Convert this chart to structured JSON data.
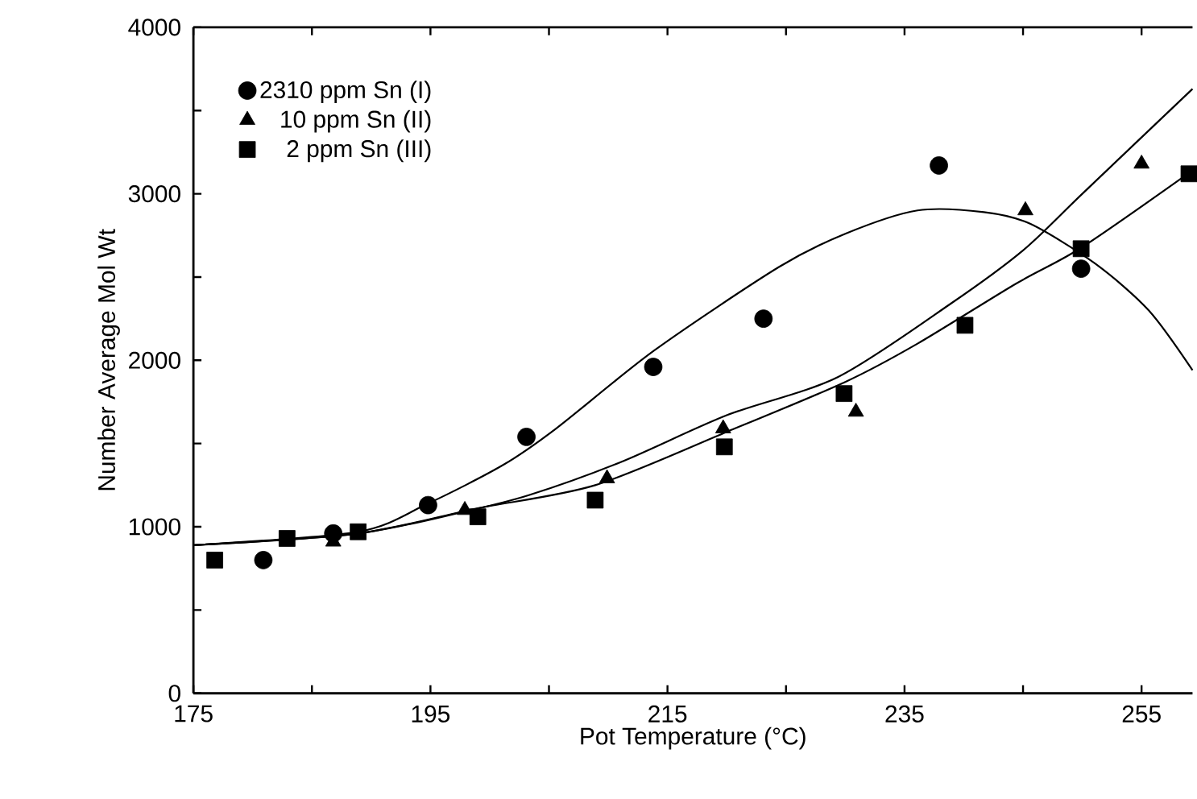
{
  "chart_data": {
    "type": "scatter",
    "xlabel": "Pot Temperature (°C)",
    "ylabel": "Number Average Mol Wt",
    "xlim": [
      175,
      259.3
    ],
    "ylim": [
      0,
      4000
    ],
    "xticks": [
      175,
      {
        "value": 185,
        "label": null
      },
      195,
      {
        "value": 205,
        "label": null
      },
      215,
      {
        "value": 225,
        "label": null
      },
      235,
      {
        "value": 245,
        "label": null
      },
      255
    ],
    "yticks": [
      0,
      {
        "value": 500,
        "label": null
      },
      1000,
      {
        "value": 1500,
        "label": null
      },
      2000,
      {
        "value": 2500,
        "label": null
      },
      3000,
      {
        "value": 3500,
        "label": null
      },
      4000
    ],
    "grid": false,
    "legend": "top left",
    "series": [
      {
        "name": "2310 ppm Sn (I)",
        "marker": "circle",
        "color": "#000000",
        "x": [
          180.9,
          186.8,
          194.8,
          203.1,
          213.8,
          223.1,
          237.9,
          249.9
        ],
        "values": [
          800,
          960,
          1130,
          1540,
          1960,
          2250,
          3170,
          2550
        ]
      },
      {
        "name": "10 ppm Sn (II)",
        "marker": "triangle",
        "color": "#000000",
        "x": [
          186.8,
          197.9,
          209.9,
          219.7,
          230.9,
          245.2,
          255
        ],
        "values": [
          910,
          1100,
          1290,
          1590,
          1690,
          2900,
          3180
        ]
      },
      {
        "name": "2 ppm Sn (III)",
        "marker": "square",
        "color": "#000000",
        "x": [
          176.8,
          182.9,
          188.9,
          199,
          208.9,
          219.8,
          229.9,
          240.1,
          249.9,
          259
        ],
        "values": [
          800,
          930,
          970,
          1060,
          1160,
          1480,
          1800,
          2210,
          2670,
          3120
        ]
      },
      {
        "type": "line",
        "marker": "none",
        "color": "#000000",
        "x": [
          175,
          188.9,
          194.8,
          201.1,
          205.6,
          213.9,
          224.4,
          230,
          236.1,
          241.7,
          245.6,
          251.1,
          255.6,
          259.3
        ],
        "values": [
          890,
          970,
          1140,
          1370,
          1590,
          2060,
          2560,
          2760,
          2900,
          2890,
          2820,
          2580,
          2300,
          1940
        ]
      },
      {
        "type": "line",
        "marker": "none",
        "color": "#000000",
        "x": [
          175,
          188.9,
          197.8,
          203.3,
          211.1,
          220,
          229.4,
          238.9,
          245,
          250,
          259.3
        ],
        "values": [
          890,
          960,
          1090,
          1190,
          1390,
          1670,
          1900,
          2340,
          2660,
          3000,
          3630
        ]
      },
      {
        "type": "line",
        "marker": "none",
        "color": "#000000",
        "x": [
          175,
          188.9,
          198.9,
          208.9,
          220,
          230,
          236.1,
          244.4,
          250,
          259.3
        ],
        "values": [
          890,
          960,
          1110,
          1250,
          1570,
          1870,
          2100,
          2460,
          2680,
          3140
        ]
      }
    ]
  }
}
